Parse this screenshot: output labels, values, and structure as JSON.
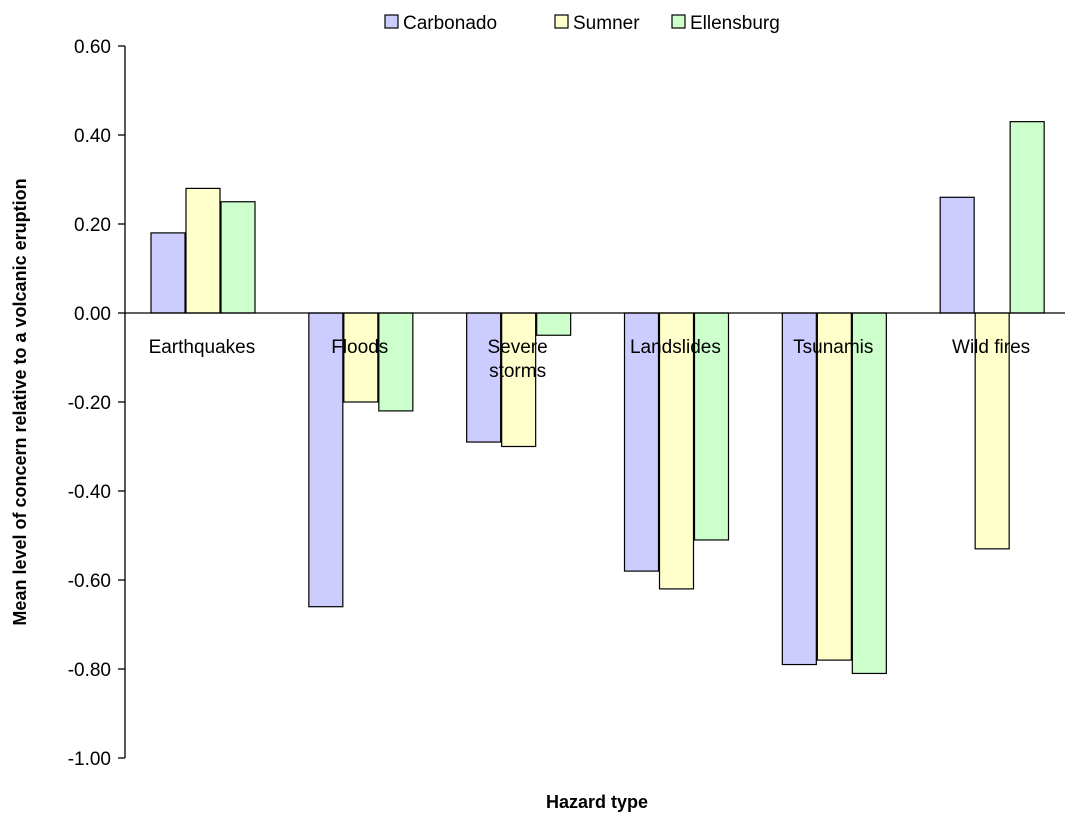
{
  "chart_data": {
    "type": "bar",
    "xlabel": "Hazard type",
    "ylabel": "Mean level of concern relative to a volcanic eruption",
    "ylim": [
      -1.0,
      0.6
    ],
    "yticks": [
      "0.60",
      "0.40",
      "0.20",
      "0.00",
      "-0.20",
      "-0.40",
      "-0.60",
      "-0.80",
      "-1.00"
    ],
    "ytick_values": [
      0.6,
      0.4,
      0.2,
      0.0,
      -0.2,
      -0.4,
      -0.6,
      -0.8,
      -1.0
    ],
    "categories": [
      {
        "label": "Earthquakes",
        "lines": [
          "Earthquakes"
        ]
      },
      {
        "label": "Floods",
        "lines": [
          "Floods"
        ]
      },
      {
        "label": "Severe storms",
        "lines": [
          "Severe",
          "storms"
        ]
      },
      {
        "label": "Landslides",
        "lines": [
          "Landslides"
        ]
      },
      {
        "label": "Tsunamis",
        "lines": [
          "Tsunamis"
        ]
      },
      {
        "label": "Wild fires",
        "lines": [
          "Wild fires"
        ]
      }
    ],
    "series": [
      {
        "name": "Carbonado",
        "color": "#ccccff",
        "values": [
          0.18,
          -0.66,
          -0.29,
          -0.58,
          -0.79,
          0.26
        ]
      },
      {
        "name": "Sumner",
        "color": "#ffffcc",
        "values": [
          0.28,
          -0.2,
          -0.3,
          -0.62,
          -0.78,
          -0.53
        ]
      },
      {
        "name": "Ellensburg",
        "color": "#ccffcc",
        "values": [
          0.25,
          -0.22,
          -0.05,
          -0.51,
          -0.81,
          0.43
        ]
      }
    ],
    "legend_position": "top",
    "grid": false
  }
}
